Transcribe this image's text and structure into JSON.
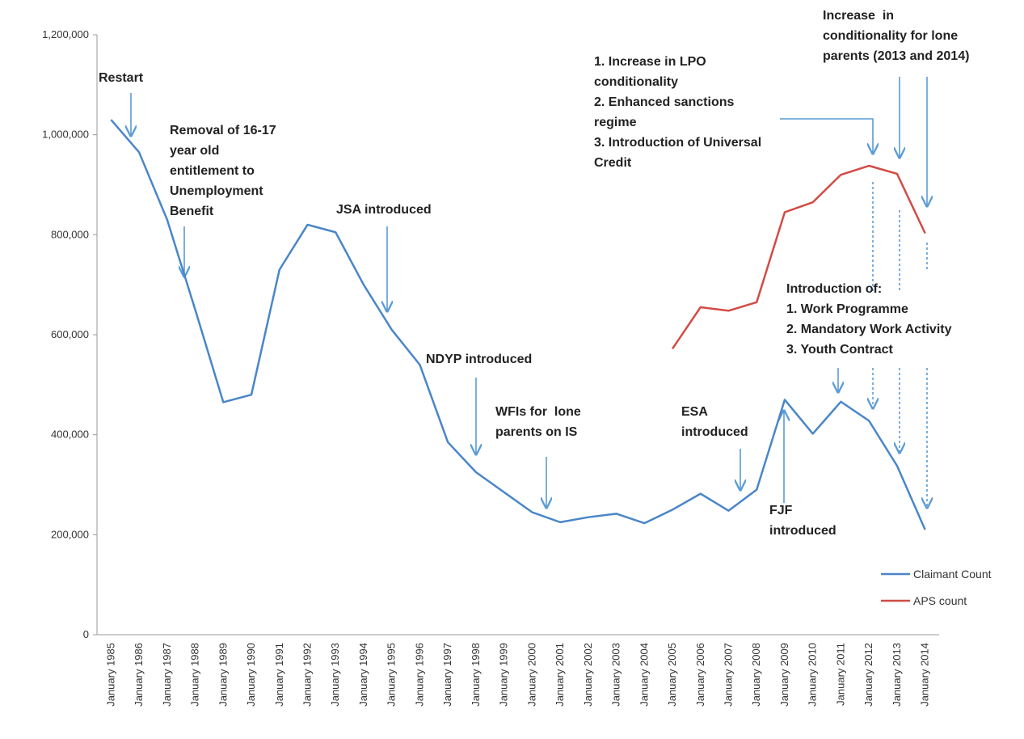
{
  "chart_data": {
    "type": "line",
    "categories": [
      "January 1985",
      "January 1986",
      "January 1987",
      "January 1988",
      "January 1989",
      "January 1990",
      "January 1991",
      "January 1992",
      "January 1993",
      "January 1994",
      "January 1995",
      "January 1996",
      "January 1997",
      "January 1998",
      "January 1999",
      "January 2000",
      "January 2001",
      "January 2002",
      "January 2003",
      "January 2004",
      "January 2005",
      "January 2006",
      "January 2007",
      "January 2008",
      "January 2009",
      "January 2010",
      "January 2011",
      "January 2012",
      "January 2013",
      "January 2014"
    ],
    "series": [
      {
        "name": "Claimant Count",
        "color": "#4a86c8",
        "values": [
          1030000,
          965000,
          830000,
          650000,
          465000,
          480000,
          730000,
          820000,
          805000,
          700000,
          610000,
          540000,
          385000,
          325000,
          285000,
          245000,
          225000,
          235000,
          242000,
          223000,
          250000,
          282000,
          248000,
          290000,
          470000,
          402000,
          466000,
          428000,
          338000,
          210000
        ]
      },
      {
        "name": "APS count",
        "color": "#d24b45",
        "values": [
          null,
          null,
          null,
          null,
          null,
          null,
          null,
          null,
          null,
          null,
          null,
          null,
          null,
          null,
          null,
          null,
          null,
          null,
          null,
          null,
          572000,
          655000,
          648000,
          665000,
          845000,
          865000,
          920000,
          938000,
          922000,
          803000
        ]
      }
    ],
    "ylim": [
      0,
      1200000
    ],
    "yticks": [
      0,
      {
        "value": 200000,
        "label": "200,000"
      },
      {
        "value": 400000,
        "label": "400,000"
      },
      {
        "value": 600000,
        "label": "600,000"
      },
      {
        "value": 800000,
        "label": "800,000"
      },
      {
        "value": 1000000,
        "label": "1,000,000"
      },
      {
        "value": 1200000,
        "label": "1,200,000"
      }
    ],
    "legend": "bottom-right",
    "annotations": [
      [
        "Restart"
      ],
      [
        "Removal of 16-17",
        "year old",
        "entitlement to",
        "Unemployment",
        "Benefit"
      ],
      [
        "JSA introduced"
      ],
      [
        "NDYP introduced"
      ],
      [
        "WFIs for  lone",
        "parents on IS"
      ],
      [
        "ESA",
        "introduced"
      ],
      [
        "FJF",
        "introduced"
      ],
      [
        "1. Increase in LPO",
        "conditionality",
        "2. Enhanced sanctions",
        "regime",
        "3. Introduction of Universal",
        "Credit"
      ],
      [
        "Increase  in",
        "conditionality for lone",
        "parents (2013 and 2014)"
      ],
      [
        "Introduction of:",
        "1. Work Programme",
        "2. Mandatory Work Activity",
        "3. Youth Contract"
      ]
    ]
  }
}
